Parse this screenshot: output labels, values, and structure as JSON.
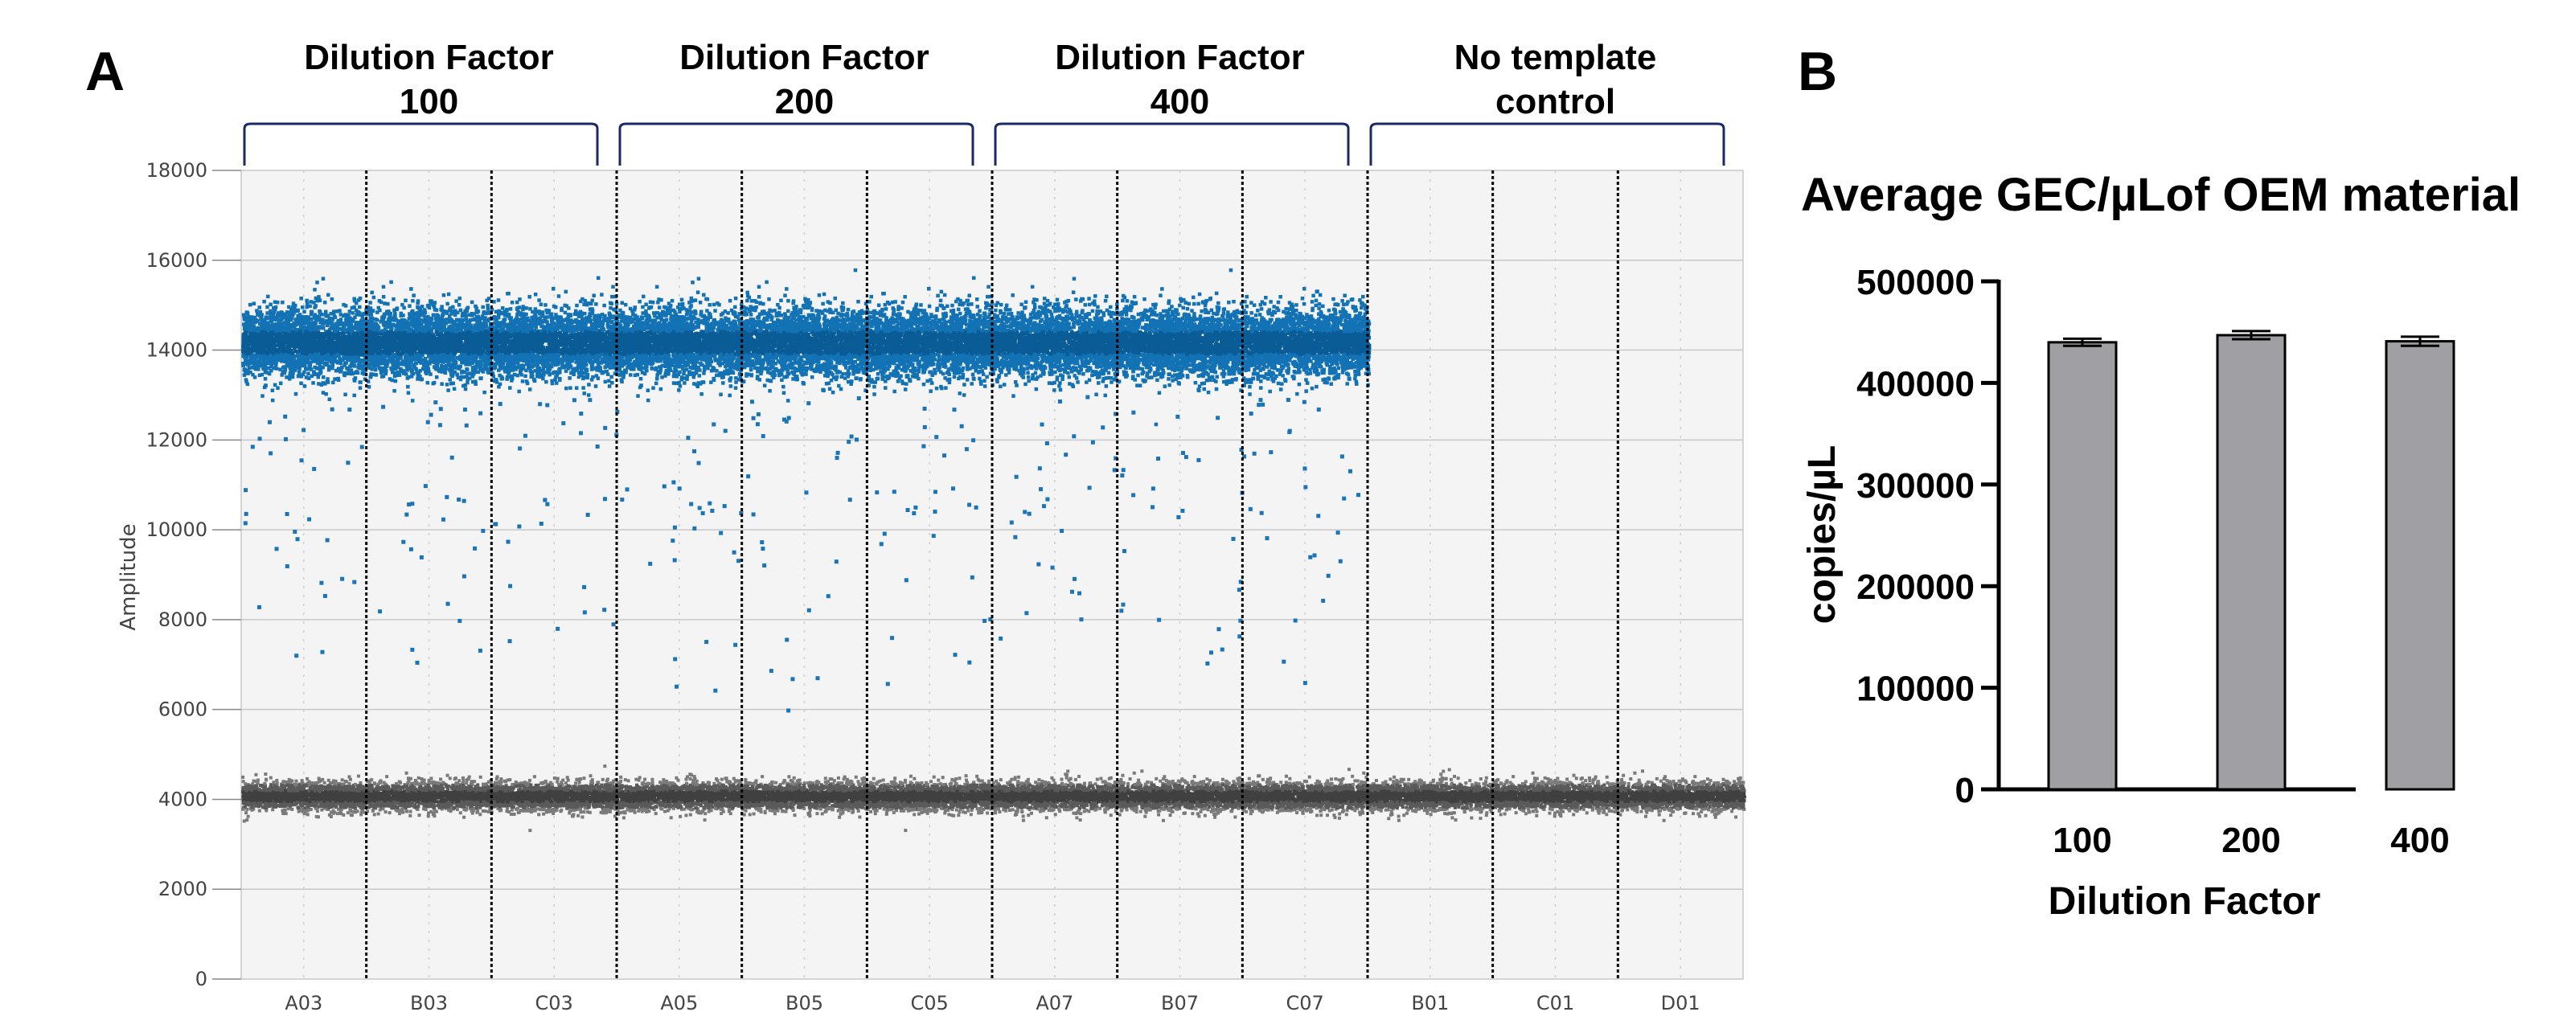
{
  "panels": {
    "a_letter": "A",
    "b_letter": "B"
  },
  "chart_data": [
    {
      "type": "scatter",
      "panel": "A",
      "ylabel": "Amplitude",
      "xlabel": "",
      "ylim": [
        0,
        18000
      ],
      "yticks": [
        0,
        2000,
        4000,
        6000,
        8000,
        10000,
        12000,
        14000,
        16000,
        18000
      ],
      "grid": true,
      "wells": [
        "A03",
        "B03",
        "C03",
        "A05",
        "B05",
        "C05",
        "A07",
        "B07",
        "C07",
        "B01",
        "C01",
        "D01"
      ],
      "groups": [
        {
          "label_line1": "Dilution Factor",
          "label_line2": "100",
          "wells": [
            "A03",
            "B03",
            "C03"
          ]
        },
        {
          "label_line1": "Dilution Factor",
          "label_line2": "200",
          "wells": [
            "A05",
            "B05",
            "C05"
          ]
        },
        {
          "label_line1": "Dilution Factor",
          "label_line2": "400",
          "wells": [
            "A07",
            "B07",
            "C07"
          ]
        },
        {
          "label_line1": "No template",
          "label_line2": "control",
          "wells": [
            "B01",
            "C01",
            "D01"
          ]
        }
      ],
      "series": [
        {
          "role": "positive droplets",
          "color": "#0f6cad",
          "center": 14200,
          "spread": 900,
          "present_in": [
            "A03",
            "B03",
            "C03",
            "A05",
            "B05",
            "C05",
            "A07",
            "B07",
            "C07"
          ],
          "scattered_range": [
            5800,
            13000
          ],
          "outliers": [
            16000,
            16400,
            15900,
            15800
          ]
        },
        {
          "role": "negative droplets",
          "color": "#6e6e6e",
          "center": 4100,
          "spread": 350,
          "present_in": [
            "A03",
            "B03",
            "C03",
            "A05",
            "B05",
            "C05",
            "A07",
            "B07",
            "C07",
            "B01",
            "C01",
            "D01"
          ],
          "outliers": [
            5600,
            5600,
            5700
          ]
        }
      ],
      "colors": {
        "plot_bg": "#f4f4f4",
        "grid": "#c8c8c8",
        "bracket": "#1a2a66",
        "divider": "#000000"
      }
    },
    {
      "type": "bar",
      "panel": "B",
      "title": "Average GEC/µLof OEM material",
      "xlabel": "Dilution Factor",
      "ylabel": "copies/µL",
      "categories": [
        "100",
        "200",
        "400"
      ],
      "values": [
        440000,
        447000,
        441000
      ],
      "errors": [
        3500,
        4000,
        4500
      ],
      "ylim": [
        0,
        500000
      ],
      "yticks": [
        0,
        100000,
        200000,
        300000,
        400000,
        500000
      ],
      "colors": {
        "bar": "#a09fa4",
        "edge": "#000000"
      }
    }
  ]
}
